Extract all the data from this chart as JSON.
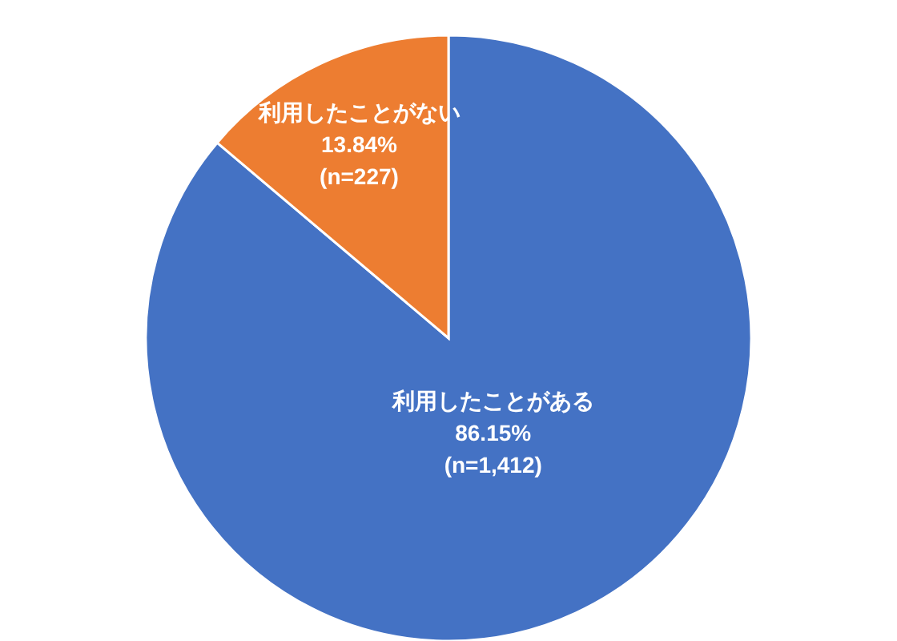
{
  "chart_data": {
    "type": "pie",
    "categories": [
      "利用したことがある",
      "利用したことがない"
    ],
    "values": [
      86.15,
      13.84
    ],
    "colors": [
      "#4472c4",
      "#ed7d31"
    ],
    "value_labels": [
      "86.15%\n(n=1,412)",
      "13.84%\n(n=227)"
    ]
  }
}
